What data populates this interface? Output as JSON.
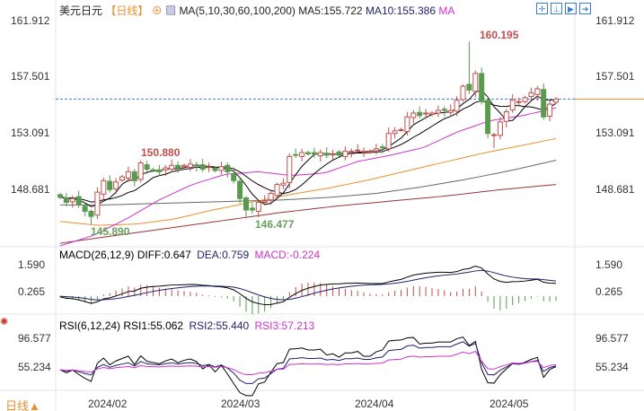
{
  "header": {
    "symbol": "美元日元",
    "period": "【日线】",
    "ma_params": "MA(5,10,30,60,100,200)",
    "ma5": "MA5:155.722",
    "ma10": "MA10:155.386",
    "ma_label": "MA"
  },
  "toolbar_icons": [
    "crosshair-icon",
    "zoom-fit-icon",
    "play-icon",
    "exit-icon"
  ],
  "price_axis": [
    "161.912",
    "157.501",
    "153.091",
    "148.681"
  ],
  "price_axis_values": [
    161.912,
    157.501,
    153.091,
    148.681
  ],
  "annotations": {
    "high": "160.195",
    "high1": "150.880",
    "low1": "145.890",
    "low2": "146.477"
  },
  "current_price": 155.7,
  "macd": {
    "title": "MACD(26,12,9)",
    "diff": "DIFF:0.647",
    "dea": "DEA:0.759",
    "macd": "MACD:-0.224",
    "axis": [
      "1.590",
      "0.265"
    ]
  },
  "rsi": {
    "title": "RSI(6,12,24)",
    "rsi1": "RSI1:55.062",
    "rsi2": "RSI2:55.440",
    "rsi3": "RSI3:57.213",
    "axis": [
      "96.577",
      "55.234"
    ]
  },
  "xaxis": {
    "period_button": "日线▲",
    "months": [
      "2024/02",
      "2024/03",
      "2024/04",
      "2024/05"
    ]
  },
  "colors": {
    "up": "#c0504d",
    "down": "#5a9a4f",
    "ma5": "#000000",
    "ma10": "#000000",
    "ma30": "#cc33cc",
    "ma60": "#e8902c",
    "ma100": "#666666",
    "ma200": "#993333",
    "dea": "#1f1f6b",
    "macdlabel": "#cc33cc"
  },
  "closes": [
    148.0,
    147.6,
    147.9,
    147.4,
    146.9,
    146.5,
    148.4,
    149.3,
    148.6,
    149.2,
    149.6,
    150.0,
    149.3,
    150.7,
    150.2,
    150.1,
    150.0,
    150.3,
    150.5,
    150.3,
    150.5,
    150.6,
    150.5,
    150.2,
    150.4,
    150.1,
    150.4,
    150.0,
    149.3,
    147.9,
    147.0,
    147.0,
    147.6,
    147.7,
    148.3,
    149.0,
    149.1,
    151.2,
    151.3,
    151.5,
    151.4,
    151.4,
    151.5,
    151.3,
    151.4,
    151.3,
    151.6,
    151.6,
    151.7,
    151.6,
    151.6,
    151.8,
    151.9,
    153.0,
    153.2,
    153.3,
    154.3,
    154.6,
    154.4,
    154.6,
    154.6,
    154.8,
    154.8,
    154.8,
    155.6,
    156.7,
    156.4,
    157.7,
    155.5,
    153.0,
    152.9,
    153.9,
    154.7,
    155.6,
    155.5,
    155.8,
    156.2,
    156.5,
    154.3,
    155.3,
    155.7
  ],
  "ma30": [
    144.2,
    145.0,
    146.3,
    147.8,
    149.0,
    149.8,
    150.0,
    149.7,
    149.9,
    150.8,
    151.3,
    151.9,
    153.1,
    154.0,
    154.4,
    155.0
  ],
  "ma60": [
    146.1,
    145.8,
    145.9,
    146.3,
    147.0,
    147.6,
    148.2,
    148.7,
    149.3,
    150.0,
    150.7,
    151.4,
    152.0,
    152.6
  ],
  "ma100": [
    147.4,
    147.4,
    147.5,
    147.6,
    147.7,
    147.8,
    148.0,
    148.3,
    148.8,
    149.4,
    150.1,
    150.9
  ],
  "ma200": [
    144.4,
    145.0,
    145.6,
    146.2,
    146.8,
    147.3,
    147.7,
    148.1,
    148.6,
    149.0
  ]
}
